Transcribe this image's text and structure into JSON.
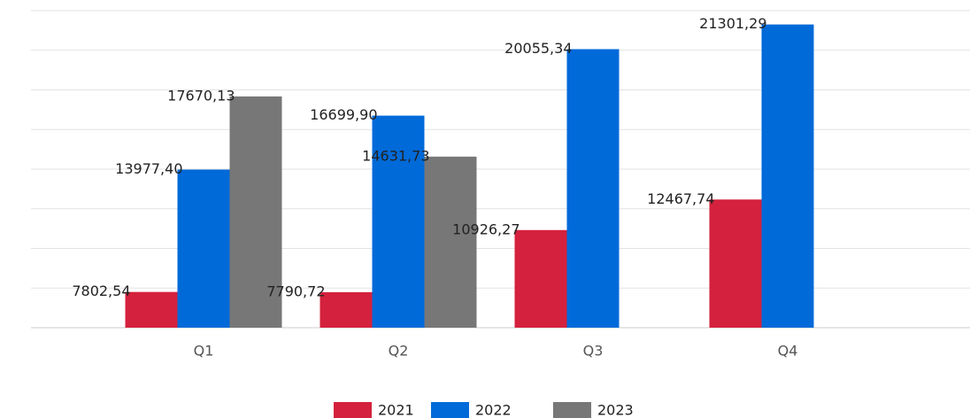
{
  "chart_data": {
    "type": "bar",
    "categories": [
      "Q1",
      "Q2",
      "Q3",
      "Q4"
    ],
    "series": [
      {
        "name": "2021",
        "color": "#d4213d",
        "values": [
          7802.54,
          7790.72,
          10926.27,
          12467.74
        ],
        "value_labels": [
          "7802,54",
          "7790,72",
          "10926,27",
          "12467,74"
        ]
      },
      {
        "name": "2022",
        "color": "#006ad9",
        "values": [
          13977.4,
          16699.9,
          20055.34,
          21301.29
        ],
        "value_labels": [
          "13977,40",
          "16699,90",
          "20055,34",
          "21301,29"
        ]
      },
      {
        "name": "2023",
        "color": "#777777",
        "values": [
          17670.13,
          14631.73,
          null,
          null
        ],
        "value_labels": [
          "17670,13",
          "14631,73",
          null,
          null
        ]
      }
    ],
    "ylim": [
      6000,
      22000
    ],
    "yticks": [
      6000,
      8000,
      10000,
      12000,
      14000,
      16000,
      18000,
      20000,
      22000
    ],
    "grid": true,
    "legend": "bottom"
  }
}
